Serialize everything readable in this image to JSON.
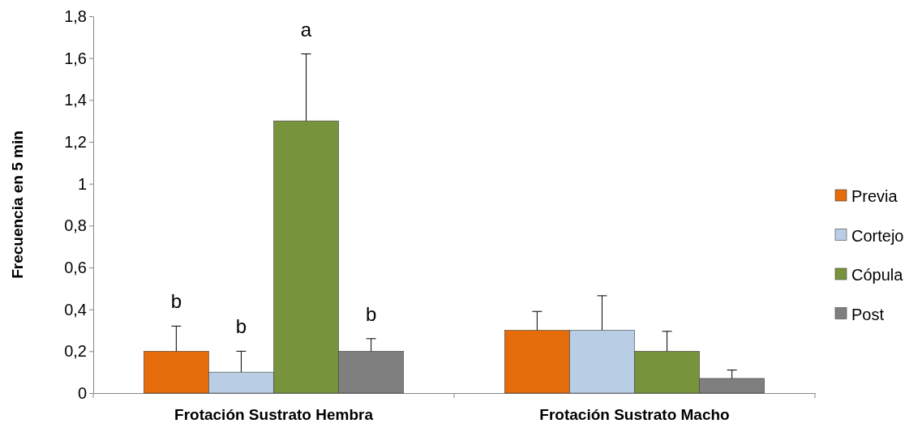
{
  "chart_data": {
    "type": "bar",
    "ylabel": "Frecuencia en 5 min",
    "categories": [
      "Frotación Sustrato Hembra",
      "Frotación Sustrato Macho"
    ],
    "series": [
      {
        "name": "Previa",
        "color": "#e46c0a",
        "values": [
          0.2,
          0.3
        ],
        "errors": [
          [
            0.2,
            0.32
          ],
          [
            0.3,
            0.39
          ]
        ]
      },
      {
        "name": "Cortejo",
        "color": "#b9cde5",
        "values": [
          0.1,
          0.3
        ],
        "errors": [
          [
            0.1,
            0.2
          ],
          [
            0.3,
            0.465
          ]
        ]
      },
      {
        "name": "Cópula",
        "color": "#77933c",
        "values": [
          1.3,
          0.2
        ],
        "errors": [
          [
            1.3,
            1.62
          ],
          [
            0.2,
            0.295
          ]
        ]
      },
      {
        "name": "Post",
        "color": "#7f7f7f",
        "values": [
          0.2,
          0.07
        ],
        "errors": [
          [
            0.2,
            0.26
          ],
          [
            0.07,
            0.11
          ]
        ]
      }
    ],
    "ylim": [
      0,
      1.8
    ],
    "yticks": [
      0,
      {
        "value": 0.2,
        "label": "0,2"
      },
      {
        "value": 0.4,
        "label": "0,4"
      },
      {
        "value": 0.6,
        "label": "0,6"
      },
      {
        "value": 0.8,
        "label": "0,8"
      },
      1,
      {
        "value": 1.2,
        "label": "1,2"
      },
      {
        "value": 1.4,
        "label": "1,4"
      },
      {
        "value": 1.6,
        "label": "1,6"
      },
      {
        "value": 1.8,
        "label": "1,8"
      }
    ],
    "grid": false,
    "legend": "right",
    "annotations": [
      "b",
      "b",
      "a",
      "b"
    ]
  }
}
